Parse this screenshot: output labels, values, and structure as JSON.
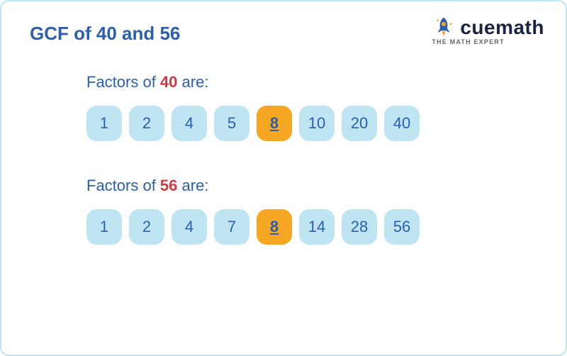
{
  "colors": {
    "border": "#bfe4f2",
    "title": "#2a5fb0",
    "logo_text": "#1a2340",
    "tagline": "#666666",
    "section_text": "#2a5fb0",
    "num1": "#d23842",
    "num2": "#d23842",
    "chip_bg": "#bfe4f2",
    "chip_text": "#2a5fb0",
    "hl_bg": "#f5a623",
    "hl_text": "#2a5fb0",
    "rocket_body": "#2a5fb0",
    "rocket_window": "#f5a623",
    "rocket_flame": "#f5a623"
  },
  "title": "GCF of 40 and 56",
  "logo": {
    "text": "cuemath",
    "tagline": "THE MATH EXPERT"
  },
  "section1": {
    "prefix": "Factors of ",
    "number": "40",
    "suffix": " are:",
    "factors": [
      "1",
      "2",
      "4",
      "5",
      "8",
      "10",
      "20",
      "40"
    ],
    "highlight_index": 4
  },
  "section2": {
    "prefix": "Factors of ",
    "number": "56",
    "suffix": " are:",
    "factors": [
      "1",
      "2",
      "4",
      "7",
      "8",
      "14",
      "28",
      "56"
    ],
    "highlight_index": 4
  }
}
